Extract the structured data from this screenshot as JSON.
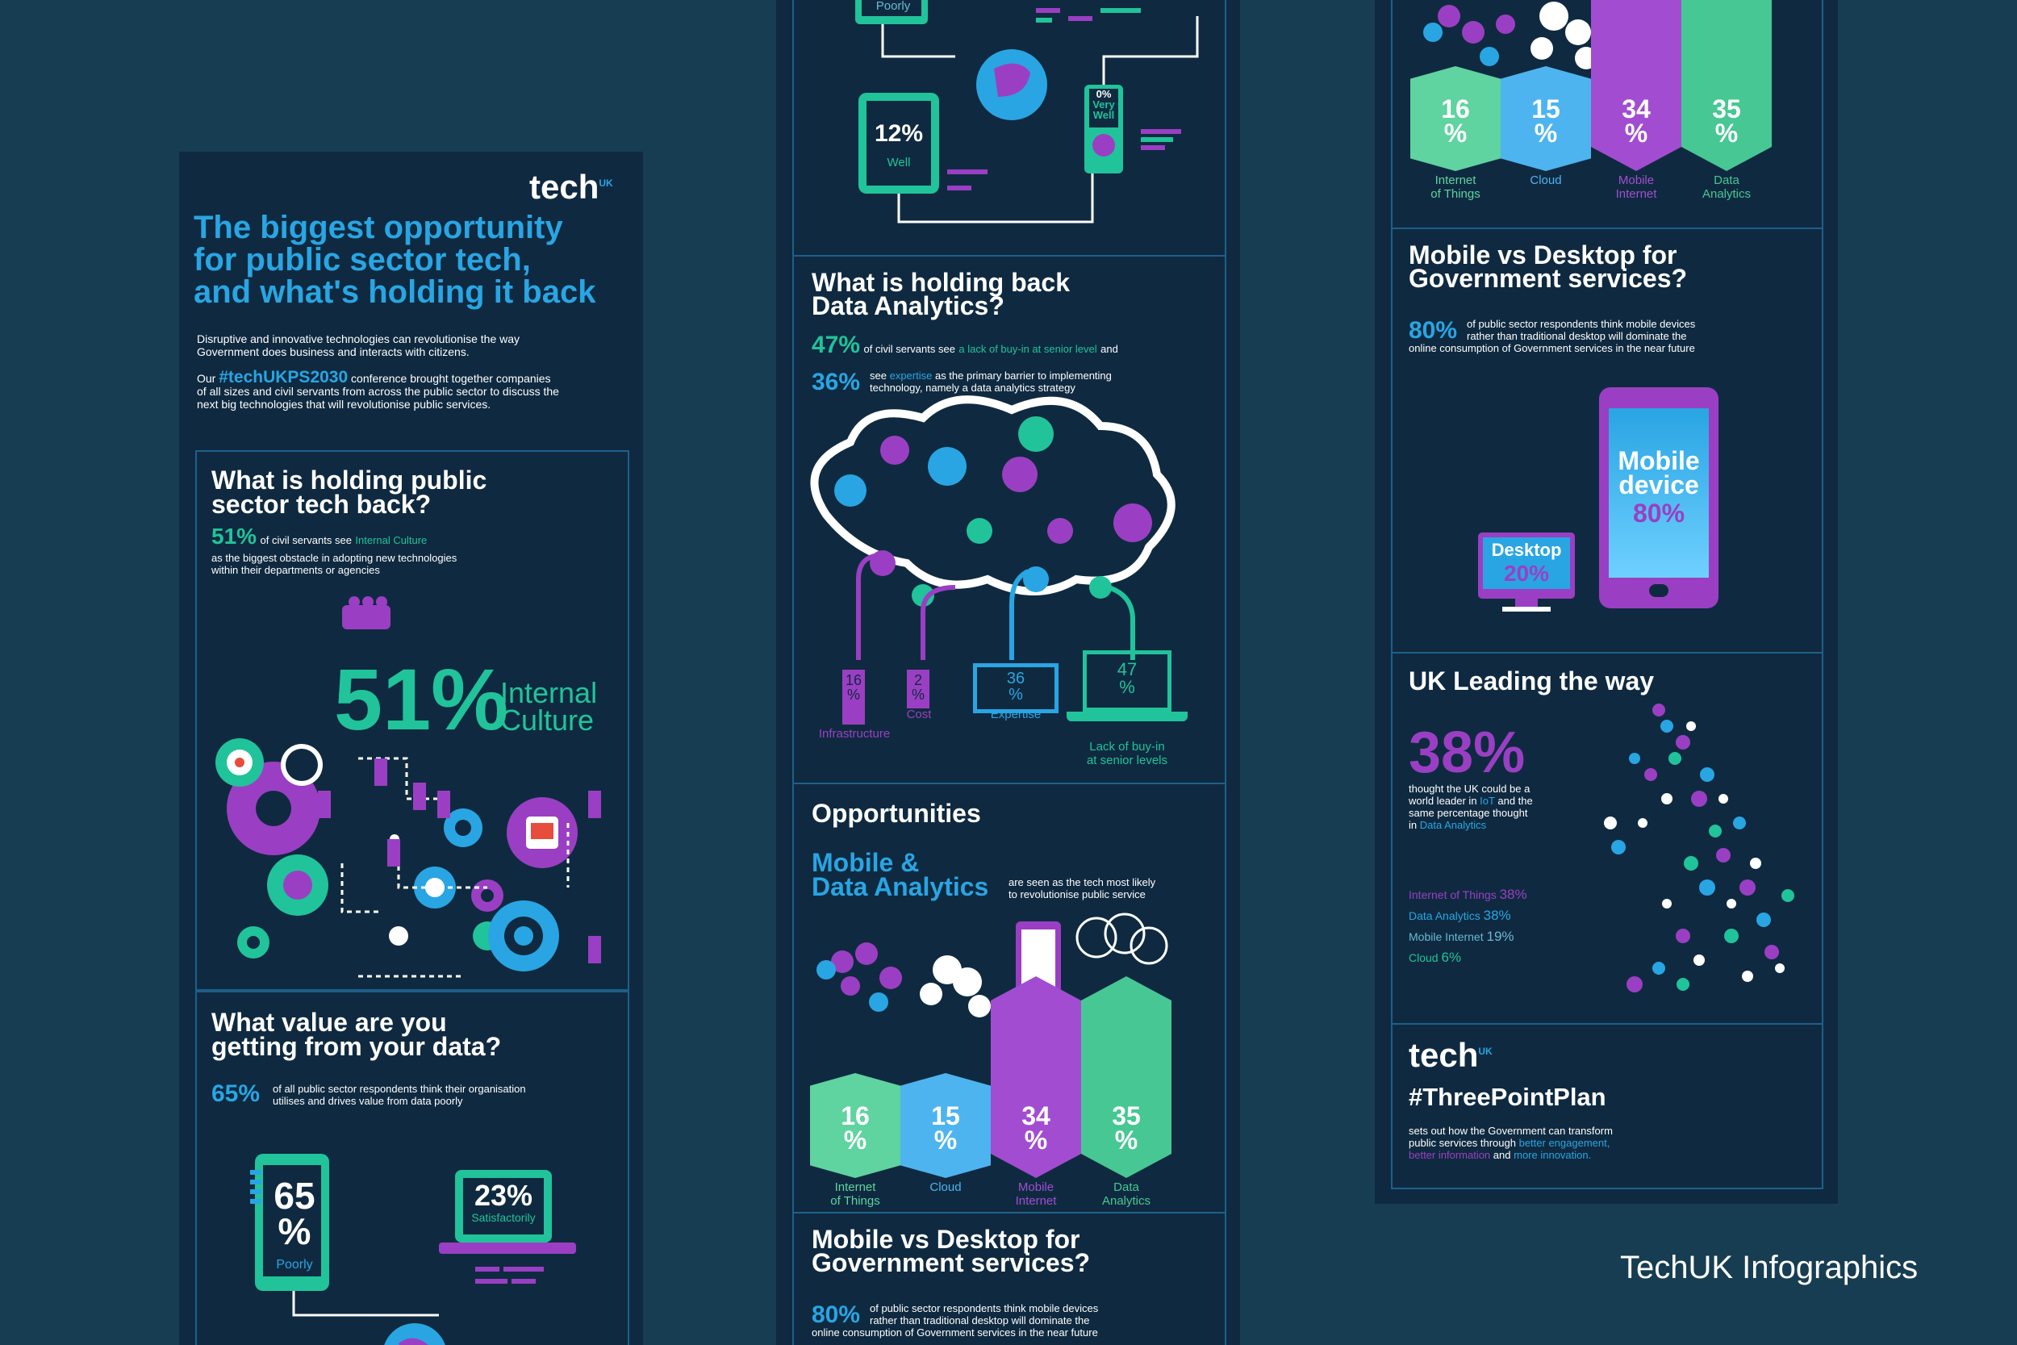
{
  "caption": "TechUK Infographics",
  "colors": {
    "bg": "#173d52",
    "panel": "#0f2a40",
    "border": "#1e5f8a",
    "teal": "#21c39a",
    "blue": "#29a5e3",
    "purple": "#9a3fc3",
    "lightblue": "#6ab8d4"
  },
  "col1": {
    "logo": "tech",
    "logo_sup": "UK",
    "title_line1": "The biggest opportunity",
    "title_line2": "for public sector tech,",
    "title_line3": "and what's holding it back",
    "intro_line1": "Disruptive and innovative technologies can revolutionise the way",
    "intro_line2": "Government does business and interacts with citizens.",
    "p2_prefix": "Our",
    "hashtag": "#techUKPS2030",
    "p2_line1_rest": "conference brought together companies",
    "p2_line2": "of all sizes and civil servants from across the public sector to discuss the",
    "p2_line3": "next big technologies that will revolutionise public services.",
    "s1_title_1": "What is holding public",
    "s1_title_2": "sector tech back?",
    "s1_pct": "51%",
    "s1_text_a": "of civil servants see",
    "s1_hl": "Internal Culture",
    "s1_text_b": "as the biggest obstacle in adopting new technologies",
    "s1_text_c": "within their departments or agencies",
    "big_pct": "51%",
    "big_label_1": "Internal",
    "big_label_2": "Culture",
    "s2_title_1": "What value are you",
    "s2_title_2": "getting from your data?",
    "s2_pct": "65%",
    "s2_text_1": "of all public sector respondents think their organisation",
    "s2_text_2": "utilises and drives value from data poorly",
    "phone_val_1": "65",
    "phone_val_2": "%",
    "phone_label": "Poorly",
    "tablet_val": "23%",
    "tablet_label": "Satisfactorily"
  },
  "col2": {
    "top_label": "Poorly",
    "tablet_val": "12%",
    "tablet_label": "Well",
    "device_val": "0%",
    "device_label_1": "Very",
    "device_label_2": "Well",
    "s3_title_1": "What is holding back",
    "s3_title_2": "Data Analytics?",
    "s3_pct1": "47%",
    "s3_line1_a": "of civil servants see",
    "s3_line1_hl": "a lack of buy-in at senior level",
    "s3_line1_b": "and",
    "s3_pct2": "36%",
    "s3_line2_a": "see",
    "s3_line2_hl": "expertise",
    "s3_line2_b": "as the primary barrier to implementing",
    "s3_line3": "technology, namely a data analytics strategy",
    "bars": [
      {
        "value": "16",
        "unit": "%",
        "label_1": "Infrastructure",
        "label_2": ""
      },
      {
        "value": "2",
        "unit": "%",
        "label_1": "Cost",
        "label_2": ""
      },
      {
        "value": "36",
        "unit": "%",
        "label_1": "Expertise",
        "label_2": ""
      },
      {
        "value": "47",
        "unit": "%",
        "label_1": "Lack of buy-in",
        "label_2": "at senior levels"
      }
    ],
    "s4_title": "Opportunities",
    "s4_sub_1": "Mobile &",
    "s4_sub_2": "Data Analytics",
    "s4_text_1": "are seen as the tech most likely",
    "s4_text_2": "to revolutionise public service",
    "blocks": [
      {
        "value": "16",
        "unit": "%",
        "label_1": "Internet",
        "label_2": "of Things"
      },
      {
        "value": "15",
        "unit": "%",
        "label_1": "Cloud",
        "label_2": ""
      },
      {
        "value": "34",
        "unit": "%",
        "label_1": "Mobile",
        "label_2": "Internet"
      },
      {
        "value": "35",
        "unit": "%",
        "label_1": "Data",
        "label_2": "Analytics"
      }
    ],
    "s5_title_1": "Mobile vs Desktop for",
    "s5_title_2": "Government services?",
    "s5_pct": "80%",
    "s5_text_1": "of public sector respondents think mobile devices",
    "s5_text_2": "rather than traditional desktop will dominate the",
    "s5_text_3": "online consumption of Government services in the near future"
  },
  "col3": {
    "blocks": [
      {
        "value": "16",
        "unit": "%",
        "label_1": "Internet",
        "label_2": "of Things"
      },
      {
        "value": "15",
        "unit": "%",
        "label_1": "Cloud",
        "label_2": ""
      },
      {
        "value": "34",
        "unit": "%",
        "label_1": "Mobile",
        "label_2": "Internet"
      },
      {
        "value": "35",
        "unit": "%",
        "label_1": "Data",
        "label_2": "Analytics"
      }
    ],
    "s5_title_1": "Mobile vs Desktop for",
    "s5_title_2": "Government services?",
    "s5_pct": "80%",
    "s5_text_1": "of public sector respondents think mobile devices",
    "s5_text_2": "rather than traditional desktop will dominate the",
    "s5_text_3": "online consumption of Government services in the near future",
    "mobile_label_1": "Mobile",
    "mobile_label_2": "device",
    "mobile_pct": "80%",
    "desktop_label": "Desktop",
    "desktop_pct": "20%",
    "s6_title": "UK Leading the way",
    "s6_pct": "38%",
    "s6_text_1": "thought the UK could be a",
    "s6_text_2a": "world leader in",
    "s6_text_2hl": "IoT",
    "s6_text_2b": "and the",
    "s6_text_3": "same percentage thought",
    "s6_text_4a": "in",
    "s6_text_4hl": "Data Analytics",
    "list": [
      {
        "name": "Internet of Things",
        "value": "38%"
      },
      {
        "name": "Data Analytics",
        "value": "38%"
      },
      {
        "name": "Mobile Internet",
        "value": "19%"
      },
      {
        "name": "Cloud",
        "value": "6%"
      }
    ],
    "logo": "tech",
    "logo_sup": "UK",
    "plan_title": "#ThreePointPlan",
    "plan_text_1": "sets out how the Government can transform",
    "plan_text_2a": "public services through",
    "plan_text_2hl": "better engagement,",
    "plan_text_3hl1": "better information",
    "plan_text_3b": "and",
    "plan_text_3hl2": "more innovation."
  }
}
